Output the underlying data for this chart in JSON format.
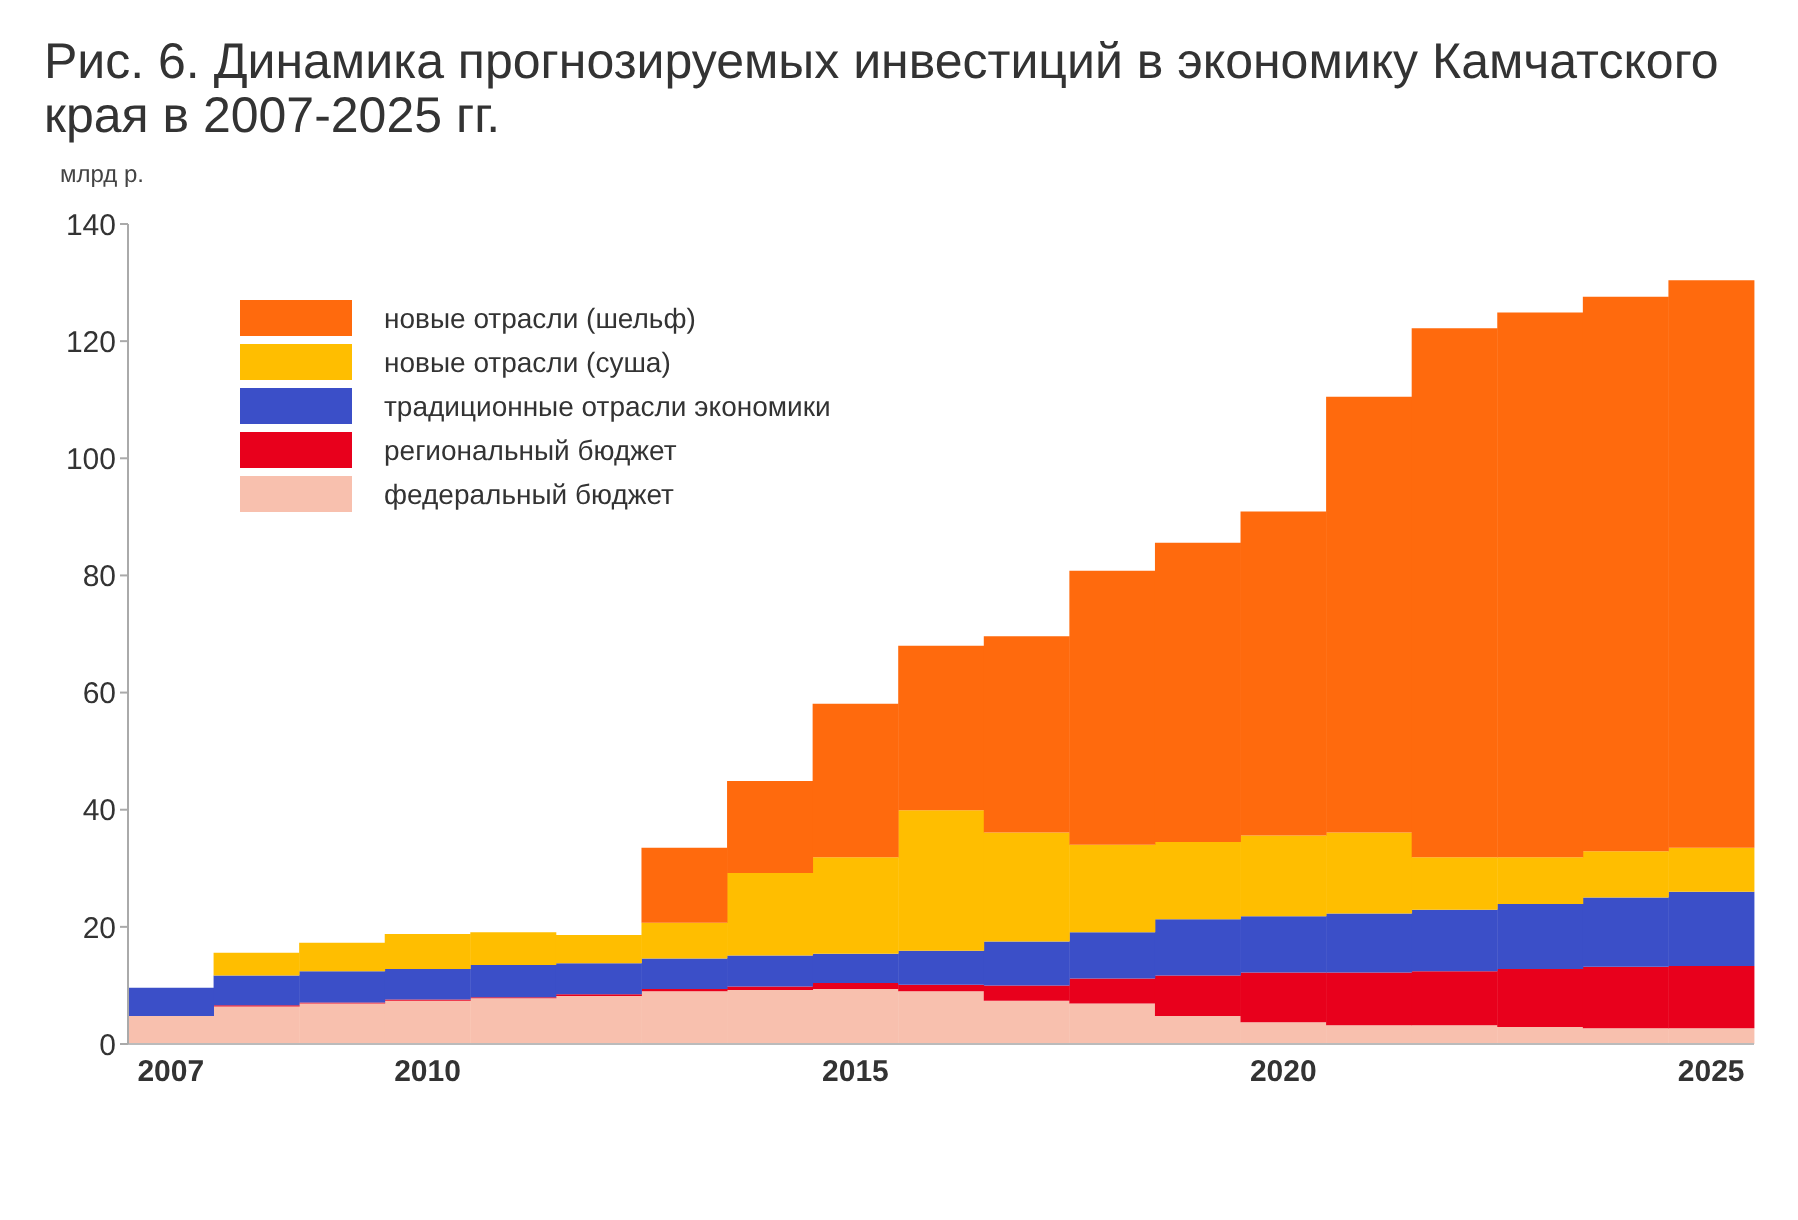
{
  "chart_data": {
    "type": "bar",
    "title": "Рис. 6. Динамика прогнозируемых инвестиций в экономику Камчатского края в 2007-2025 гг.",
    "ylabel": "млрд р.",
    "categories": [
      "2007",
      null,
      null,
      "2010",
      null,
      null,
      null,
      null,
      "2015",
      null,
      null,
      null,
      null,
      "2020",
      null,
      null,
      null,
      null,
      "2025"
    ],
    "stacked": true,
    "series": [
      {
        "name": "федеральный бюджет",
        "color": "#f8c0ae",
        "values": [
          4.8,
          6.4,
          6.9,
          7.4,
          7.8,
          8.2,
          9.0,
          9.2,
          9.4,
          9.0,
          7.4,
          6.9,
          4.8,
          3.7,
          3.2,
          3.2,
          2.9,
          2.7,
          2.7
        ]
      },
      {
        "name": "региональный бюджет",
        "color": "#e8001c",
        "values": [
          0,
          0.2,
          0.2,
          0.2,
          0.2,
          0.3,
          0.4,
          0.6,
          1.0,
          1.1,
          2.6,
          4.3,
          6.9,
          8.5,
          9.0,
          9.2,
          9.9,
          10.5,
          10.6
        ]
      },
      {
        "name": "традиционные отрасли экономики",
        "color": "#3b4fc8",
        "values": [
          4.8,
          5.1,
          5.3,
          5.2,
          5.5,
          5.3,
          5.2,
          5.3,
          5.0,
          5.8,
          7.5,
          7.9,
          9.6,
          9.6,
          10.1,
          10.5,
          11.1,
          11.8,
          12.7
        ]
      },
      {
        "name": "новые отрасли (суша)",
        "color": "#ffbe00",
        "values": [
          0,
          3.9,
          4.9,
          6.0,
          5.6,
          4.8,
          6.1,
          14.1,
          16.5,
          24.0,
          18.6,
          14.9,
          13.2,
          13.8,
          13.8,
          9.0,
          8.0,
          7.9,
          7.5
        ]
      },
      {
        "name": "новые отрасли (шельф)",
        "color": "#ff6a0d",
        "values": [
          0,
          0,
          0,
          0,
          0,
          0,
          12.8,
          15.7,
          26.2,
          28.1,
          33.5,
          46.8,
          51.1,
          55.3,
          74.4,
          90.3,
          93.0,
          94.7,
          96.9
        ]
      }
    ],
    "ylim": [
      0,
      140
    ],
    "yticks": [
      0,
      20,
      40,
      60,
      80,
      100,
      120,
      140
    ],
    "grid": false,
    "legend": "top left"
  }
}
